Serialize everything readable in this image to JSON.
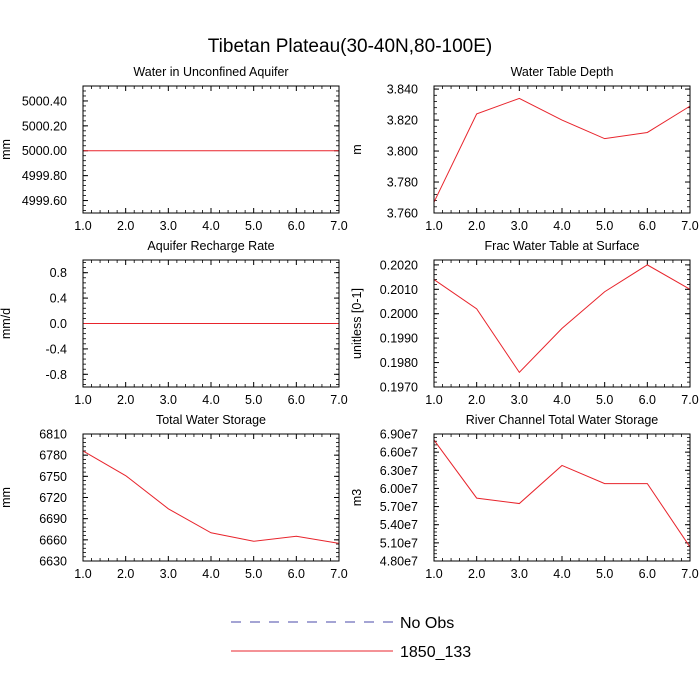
{
  "figure": {
    "title": "Tibetan Plateau(30-40N,80-100E)"
  },
  "legend": {
    "placement": "bottom-center",
    "entries": [
      {
        "label": "No Obs",
        "color": "#4a4aa8",
        "style": "dashed"
      },
      {
        "label": "1850_133",
        "color": "#e8242c",
        "style": "solid"
      }
    ]
  },
  "chart_data": [
    {
      "type": "line",
      "title": "Water in Unconfined Aquifer",
      "ylabel": "mm",
      "xlim": [
        1,
        7
      ],
      "ylim": [
        4999.5,
        5000.52
      ],
      "xticks": [
        1,
        2,
        3,
        4,
        5,
        6,
        7
      ],
      "xtick_labels": [
        "1.0",
        "2.0",
        "3.0",
        "4.0",
        "5.0",
        "6.0",
        "7.0"
      ],
      "yticks": [
        4999.6,
        4999.8,
        5000.0,
        5000.2,
        5000.4
      ],
      "ytick_labels": [
        "4999.60",
        "4999.80",
        "5000.00",
        "5000.20",
        "5000.40"
      ],
      "ymajor_step": 0.2,
      "series": [
        {
          "x": [
            1,
            2,
            3,
            4,
            5,
            6,
            7
          ],
          "values": [
            5000.0,
            5000.0,
            5000.0,
            5000.0,
            5000.0,
            5000.0,
            5000.0
          ],
          "color": "#e8242c"
        }
      ]
    },
    {
      "type": "line",
      "title": "Water Table Depth",
      "ylabel": "m",
      "xlim": [
        1,
        7
      ],
      "ylim": [
        3.76,
        3.842
      ],
      "xticks": [
        1,
        2,
        3,
        4,
        5,
        6,
        7
      ],
      "xtick_labels": [
        "1.0",
        "2.0",
        "3.0",
        "4.0",
        "5.0",
        "6.0",
        "7.0"
      ],
      "yticks": [
        3.76,
        3.78,
        3.8,
        3.82,
        3.84
      ],
      "ytick_labels": [
        "3.760",
        "3.780",
        "3.800",
        "3.820",
        "3.840"
      ],
      "ymajor_step": 0.02,
      "series": [
        {
          "x": [
            1,
            2,
            3,
            4,
            5,
            6,
            7
          ],
          "values": [
            3.767,
            3.824,
            3.834,
            3.82,
            3.808,
            3.812,
            3.829
          ],
          "color": "#e8242c"
        }
      ]
    },
    {
      "type": "line",
      "title": "Aquifer Recharge Rate",
      "ylabel": "mm/d",
      "xlim": [
        1,
        7
      ],
      "ylim": [
        -1.0,
        1.0
      ],
      "xticks": [
        1,
        2,
        3,
        4,
        5,
        6,
        7
      ],
      "xtick_labels": [
        "1.0",
        "2.0",
        "3.0",
        "4.0",
        "5.0",
        "6.0",
        "7.0"
      ],
      "yticks": [
        -0.8,
        -0.4,
        0.0,
        0.4,
        0.8
      ],
      "ytick_labels": [
        "-0.8",
        "-0.4",
        "0.0",
        "0.4",
        "0.8"
      ],
      "ymajor_step": 0.4,
      "series": [
        {
          "x": [
            1,
            2,
            3,
            4,
            5,
            6,
            7
          ],
          "values": [
            0,
            0,
            0,
            0,
            0,
            0,
            0
          ],
          "color": "#e8242c"
        }
      ]
    },
    {
      "type": "line",
      "title": "Frac Water Table at Surface",
      "ylabel": "unitless [0-1]",
      "xlim": [
        1,
        7
      ],
      "ylim": [
        0.197,
        0.2022
      ],
      "xticks": [
        1,
        2,
        3,
        4,
        5,
        6,
        7
      ],
      "xtick_labels": [
        "1.0",
        "2.0",
        "3.0",
        "4.0",
        "5.0",
        "6.0",
        "7.0"
      ],
      "yticks": [
        0.197,
        0.198,
        0.199,
        0.2,
        0.201,
        0.202
      ],
      "ytick_labels": [
        "0.1970",
        "0.1980",
        "0.1990",
        "0.2000",
        "0.2010",
        "0.2020"
      ],
      "ymajor_step": 0.001,
      "series": [
        {
          "x": [
            1,
            2,
            3,
            4,
            5,
            6,
            7
          ],
          "values": [
            0.2014,
            0.2002,
            0.1976,
            0.1994,
            0.2009,
            0.202,
            0.201
          ],
          "color": "#e8242c"
        }
      ]
    },
    {
      "type": "line",
      "title": "Total Water Storage",
      "ylabel": "mm",
      "xlim": [
        1,
        7
      ],
      "ylim": [
        6630,
        6810
      ],
      "xticks": [
        1,
        2,
        3,
        4,
        5,
        6,
        7
      ],
      "xtick_labels": [
        "1.0",
        "2.0",
        "3.0",
        "4.0",
        "5.0",
        "6.0",
        "7.0"
      ],
      "yticks": [
        6630,
        6660,
        6690,
        6720,
        6750,
        6780,
        6810
      ],
      "ytick_labels": [
        "6630",
        "6660",
        "6690",
        "6720",
        "6750",
        "6780",
        "6810"
      ],
      "ymajor_step": 30,
      "series": [
        {
          "x": [
            1,
            2,
            3,
            4,
            5,
            6,
            7
          ],
          "values": [
            6786,
            6751,
            6704,
            6670,
            6658,
            6665,
            6655
          ],
          "color": "#e8242c"
        }
      ]
    },
    {
      "type": "line",
      "title": "River Channel Total Water Storage",
      "ylabel": "m3",
      "xlim": [
        1,
        7
      ],
      "ylim": [
        48000000,
        69000000
      ],
      "xticks": [
        1,
        2,
        3,
        4,
        5,
        6,
        7
      ],
      "xtick_labels": [
        "1.0",
        "2.0",
        "3.0",
        "4.0",
        "5.0",
        "6.0",
        "7.0"
      ],
      "yticks": [
        48000000,
        51000000,
        54000000,
        57000000,
        60000000,
        63000000,
        66000000,
        69000000
      ],
      "ytick_labels": [
        "4.80e7",
        "5.10e7",
        "5.40e7",
        "5.70e7",
        "6.00e7",
        "6.30e7",
        "6.60e7",
        "6.90e7"
      ],
      "ymajor_step": 3000000,
      "series": [
        {
          "x": [
            1,
            2,
            3,
            4,
            5,
            6,
            7
          ],
          "values": [
            68000000,
            58400000,
            57500000,
            63800000,
            60800000,
            60800000,
            50300000
          ],
          "color": "#e8242c"
        }
      ]
    }
  ]
}
